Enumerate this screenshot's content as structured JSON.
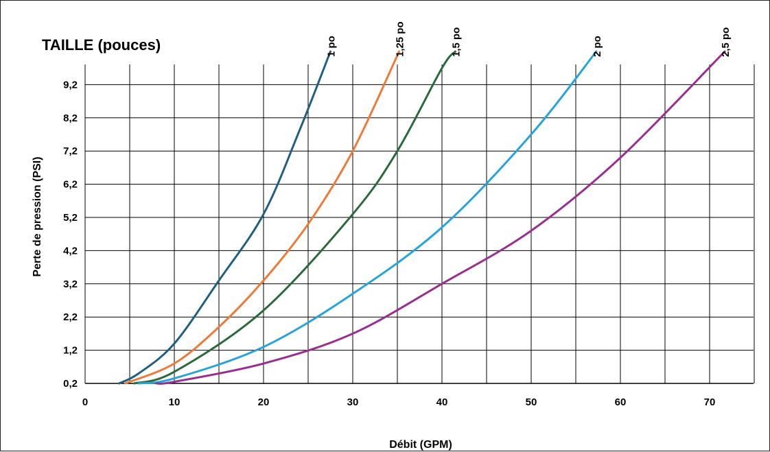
{
  "chart_data": {
    "type": "line",
    "title": "TAILLE (pouces)",
    "xlabel": "Débit (GPM)",
    "ylabel": "Perte de pression (PSI)",
    "xlim": [
      0,
      75
    ],
    "ylim": [
      0.2,
      10.2
    ],
    "xticks": [
      0,
      10,
      20,
      30,
      40,
      50,
      60,
      70
    ],
    "yticks": [
      0.2,
      1.2,
      2.2,
      3.2,
      4.2,
      5.2,
      6.2,
      7.2,
      8.2,
      9.2
    ],
    "ytick_labels": [
      "0,2",
      "1,2",
      "2,2",
      "3,2",
      "4,2",
      "5,2",
      "6,2",
      "7,2",
      "8,2",
      "9,2"
    ],
    "grid": true,
    "series": [
      {
        "name": "1 po",
        "color": "#1f5f80",
        "x": [
          3.8,
          6,
          10,
          15,
          20,
          24,
          27.5
        ],
        "y": [
          0.2,
          0.5,
          1.4,
          3.3,
          5.3,
          7.8,
          10.2
        ]
      },
      {
        "name": "1,25 po",
        "color": "#ef7a38",
        "x": [
          4.5,
          10,
          15,
          20,
          25,
          30,
          35.2
        ],
        "y": [
          0.2,
          0.8,
          1.9,
          3.3,
          5.0,
          7.2,
          10.2
        ]
      },
      {
        "name": "1,5 po",
        "color": "#2a6a3a",
        "x": [
          5.5,
          10,
          20,
          30,
          35,
          40,
          41.5
        ],
        "y": [
          0.2,
          0.55,
          2.4,
          5.3,
          7.2,
          9.7,
          10.2
        ]
      },
      {
        "name": "2 po",
        "color": "#25a4dc",
        "x": [
          6,
          10,
          20,
          30,
          40,
          50,
          57.3
        ],
        "y": [
          0.2,
          0.35,
          1.3,
          2.9,
          4.9,
          7.7,
          10.2
        ]
      },
      {
        "name": "2,5 po",
        "color": "#9a2d90",
        "x": [
          8,
          10,
          20,
          30,
          40,
          50,
          60,
          71.7
        ],
        "y": [
          0.2,
          0.25,
          0.8,
          1.7,
          3.2,
          4.8,
          7.0,
          10.2
        ]
      }
    ]
  }
}
